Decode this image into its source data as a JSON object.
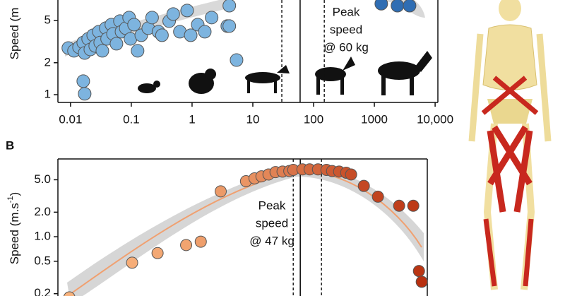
{
  "chart_data": [
    {
      "type": "scatter",
      "y_label": "Speed (m",
      "xscale": "log",
      "yscale": "log",
      "xlim": [
        0.0062,
        11100
      ],
      "ylim": [
        0.845,
        7.8
      ],
      "xticks": [
        0.01,
        0.1,
        1,
        10,
        100,
        1000,
        {
          "value": 10000,
          "label": "10,000"
        }
      ],
      "yticks": [
        1,
        2,
        5
      ],
      "reference_lines": [
        {
          "value": 60,
          "style": "solid"
        },
        {
          "value": 30,
          "style": "dashed"
        },
        {
          "value": 150,
          "style": "dashed"
        }
      ],
      "annotation": [
        "Peak",
        "speed",
        "@ 60 kg"
      ],
      "series": [
        {
          "color": "#7db4df",
          "x": [
            0.0092,
            0.0114,
            0.0138,
            0.0162,
            0.0171,
            0.0195,
            0.0212,
            0.0236,
            0.0255,
            0.0292,
            0.0308,
            0.0334,
            0.038,
            0.04,
            0.047,
            0.05,
            0.057,
            0.065,
            0.069,
            0.081,
            0.092,
            0.097,
            0.111,
            0.127,
            0.146,
            0.19,
            0.22,
            0.28,
            0.32,
            0.42,
            0.49,
            0.63,
            0.83,
            0.95,
            1.24,
            1.62,
            2.1,
            3.8,
            4.1,
            5.4,
            0.0162,
            0.0171,
            4.1
          ],
          "values": [
            2.75,
            2.59,
            2.8,
            3.1,
            2.47,
            3.36,
            2.67,
            3.63,
            2.88,
            3.92,
            3.1,
            2.59,
            4.23,
            3.36,
            4.57,
            3.74,
            3.02,
            4.93,
            3.92,
            4.23,
            5.33,
            3.36,
            4.57,
            2.59,
            3.63,
            4.23,
            5.33,
            3.92,
            3.63,
            4.93,
            5.75,
            3.92,
            6.21,
            3.63,
            4.57,
            3.92,
            5.33,
            4.43,
            4.43,
            2.12,
            1.34,
            1.02,
            6.9
          ]
        },
        {
          "color": "#2f6db3",
          "x": [
            1300,
            2400,
            3800
          ],
          "values": [
            7.2,
            6.9,
            6.9
          ]
        }
      ]
    },
    {
      "type": "scatter",
      "panel_label": "B",
      "y_label": "Speed (m.s",
      "y_label_sup": "-1",
      "y_label_end": ")",
      "xscale": "log",
      "yscale": "log",
      "xlim": [
        0.0048,
        5800
      ],
      "ylim": [
        0.18,
        9.0
      ],
      "yticks": [
        {
          "value": 0.2,
          "label": "0.2"
        },
        0.5,
        {
          "value": 1,
          "label": "1.0"
        },
        {
          "value": 2,
          "label": "2.0"
        },
        {
          "value": 5,
          "label": "5.0"
        }
      ],
      "reference_lines": [
        {
          "value": 47,
          "style": "solid"
        },
        {
          "value": 36,
          "style": "dashed"
        },
        {
          "value": 105,
          "style": "dashed"
        }
      ],
      "annotation": [
        "Peak",
        "speed",
        "@ 47 kg"
      ],
      "series": [
        {
          "color_range": [
            "#f8b27c",
            "#b8300f"
          ],
          "x": [
            0.0074,
            0.08,
            0.21,
            0.62,
            1.08,
            2.3,
            6.0,
            8.3,
            10.8,
            14.1,
            18.4,
            24,
            31,
            36,
            51,
            67,
            92,
            127,
            157,
            205,
            268,
            323,
            523,
            893,
            1995,
            3410,
            4230,
            4700
          ],
          "values": [
            0.18,
            0.48,
            0.63,
            0.79,
            0.87,
            3.6,
            4.8,
            5.2,
            5.5,
            5.8,
            6.2,
            6.3,
            6.4,
            6.6,
            6.7,
            6.7,
            6.7,
            6.6,
            6.4,
            6.3,
            6.1,
            5.8,
            4.2,
            3.1,
            2.4,
            2.4,
            0.38,
            0.28
          ]
        }
      ]
    }
  ]
}
